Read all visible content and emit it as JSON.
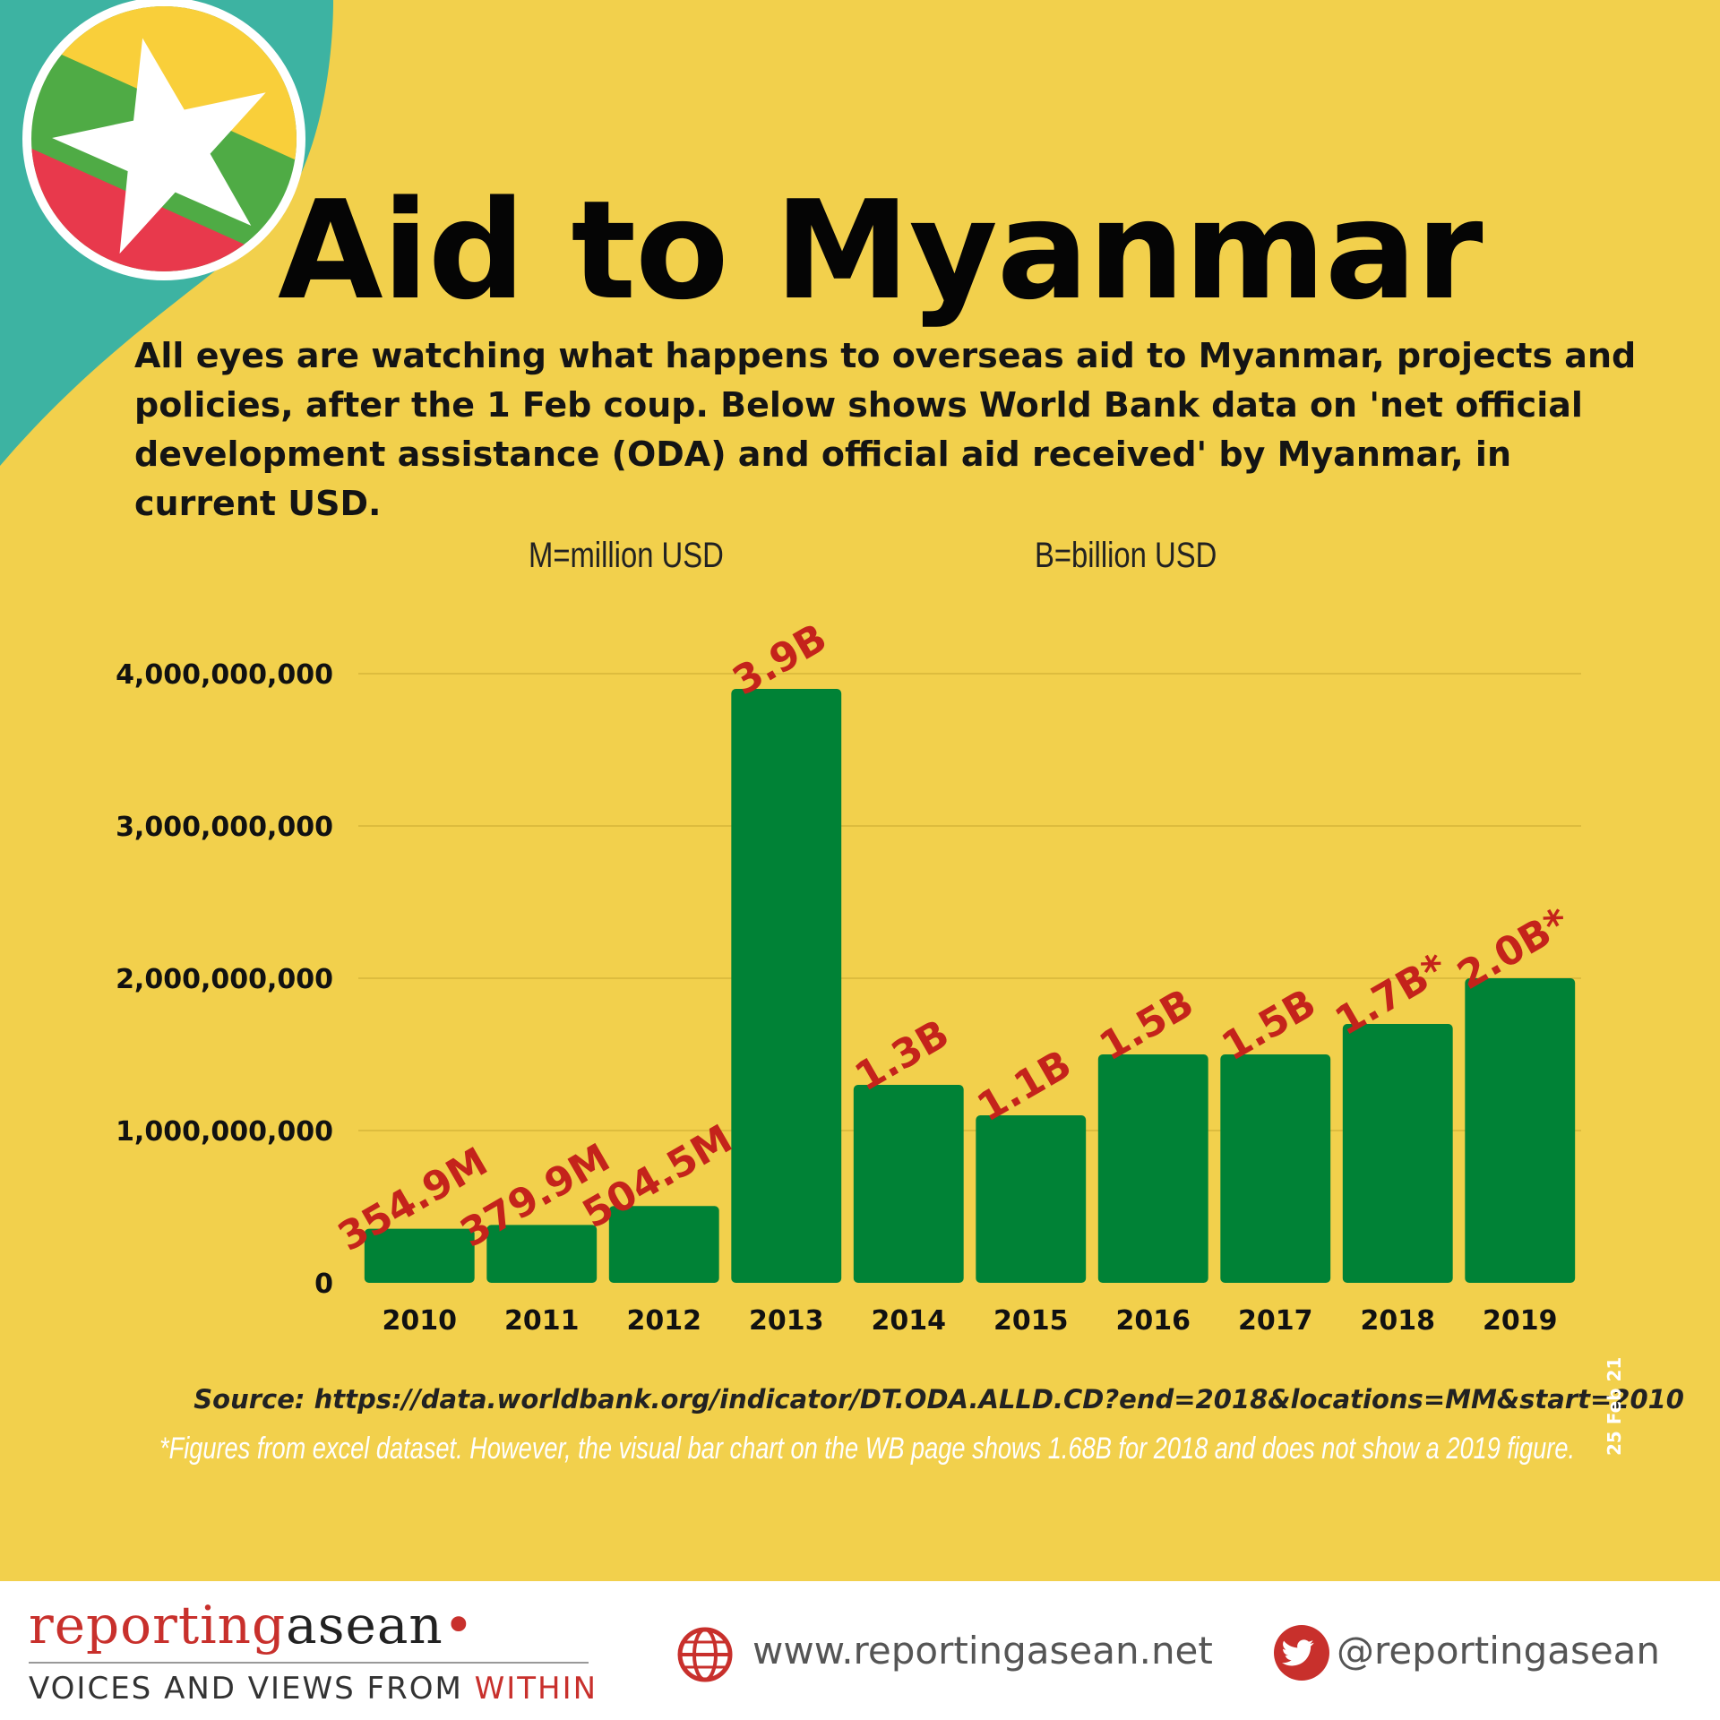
{
  "header": {
    "title": "Aid to Myanmar",
    "intro": "All eyes are watching what happens to overseas aid to Myanmar, projects and policies, after the 1 Feb coup. Below shows World Bank data on 'net official development assistance (ODA) and official aid received' by Myanmar, in current USD."
  },
  "units": {
    "million": "M=million USD",
    "billion": "B=billion USD"
  },
  "colors": {
    "background": "#f2d04c",
    "bar": "#008236",
    "data_label": "#c4231b",
    "pin_teal": "#3db3a2",
    "flag_yellow": "#f9cf3a",
    "flag_green": "#4fab45",
    "flag_red": "#e8394c"
  },
  "chart_data": {
    "type": "bar",
    "title": "",
    "xlabel": "",
    "ylabel": "",
    "categories": [
      "2010",
      "2011",
      "2012",
      "2013",
      "2014",
      "2015",
      "2016",
      "2017",
      "2018",
      "2019"
    ],
    "values": [
      354900000,
      379900000,
      504500000,
      3900000000,
      1300000000,
      1100000000,
      1500000000,
      1500000000,
      1700000000,
      2000000000
    ],
    "data_labels": [
      "354.9M",
      "379.9M",
      "504.5M",
      "3.9B",
      "1.3B",
      "1.1B",
      "1.5B",
      "1.5B",
      "1.7B*",
      "2.0B*"
    ],
    "ylim": [
      0,
      4000000000
    ],
    "yticks": [
      0,
      1000000000,
      2000000000,
      3000000000,
      4000000000
    ],
    "ytick_labels": [
      "0",
      "1,000,000,000",
      "2,000,000,000",
      "3,000,000,000",
      "4,000,000,000"
    ],
    "grid": true
  },
  "source": {
    "text": "Source:  https://data.worldbank.org/indicator/DT.ODA.ALLD.CD?end=2018&locations=MM&start=2010",
    "note": "*Figures from excel dataset. However, the visual bar chart on the WB page shows 1.68B for 2018 and does not show a 2019 figure.",
    "date": "25 Feb 21"
  },
  "footer": {
    "brand_part1": "reporting",
    "brand_part2": "asean",
    "tagline_part1": "VOICES AND VIEWS FROM ",
    "tagline_part2": "WITHIN",
    "website": "www.reportingasean.net",
    "twitter": "@reportingasean",
    "icons": [
      "globe-icon",
      "twitter-icon"
    ]
  }
}
